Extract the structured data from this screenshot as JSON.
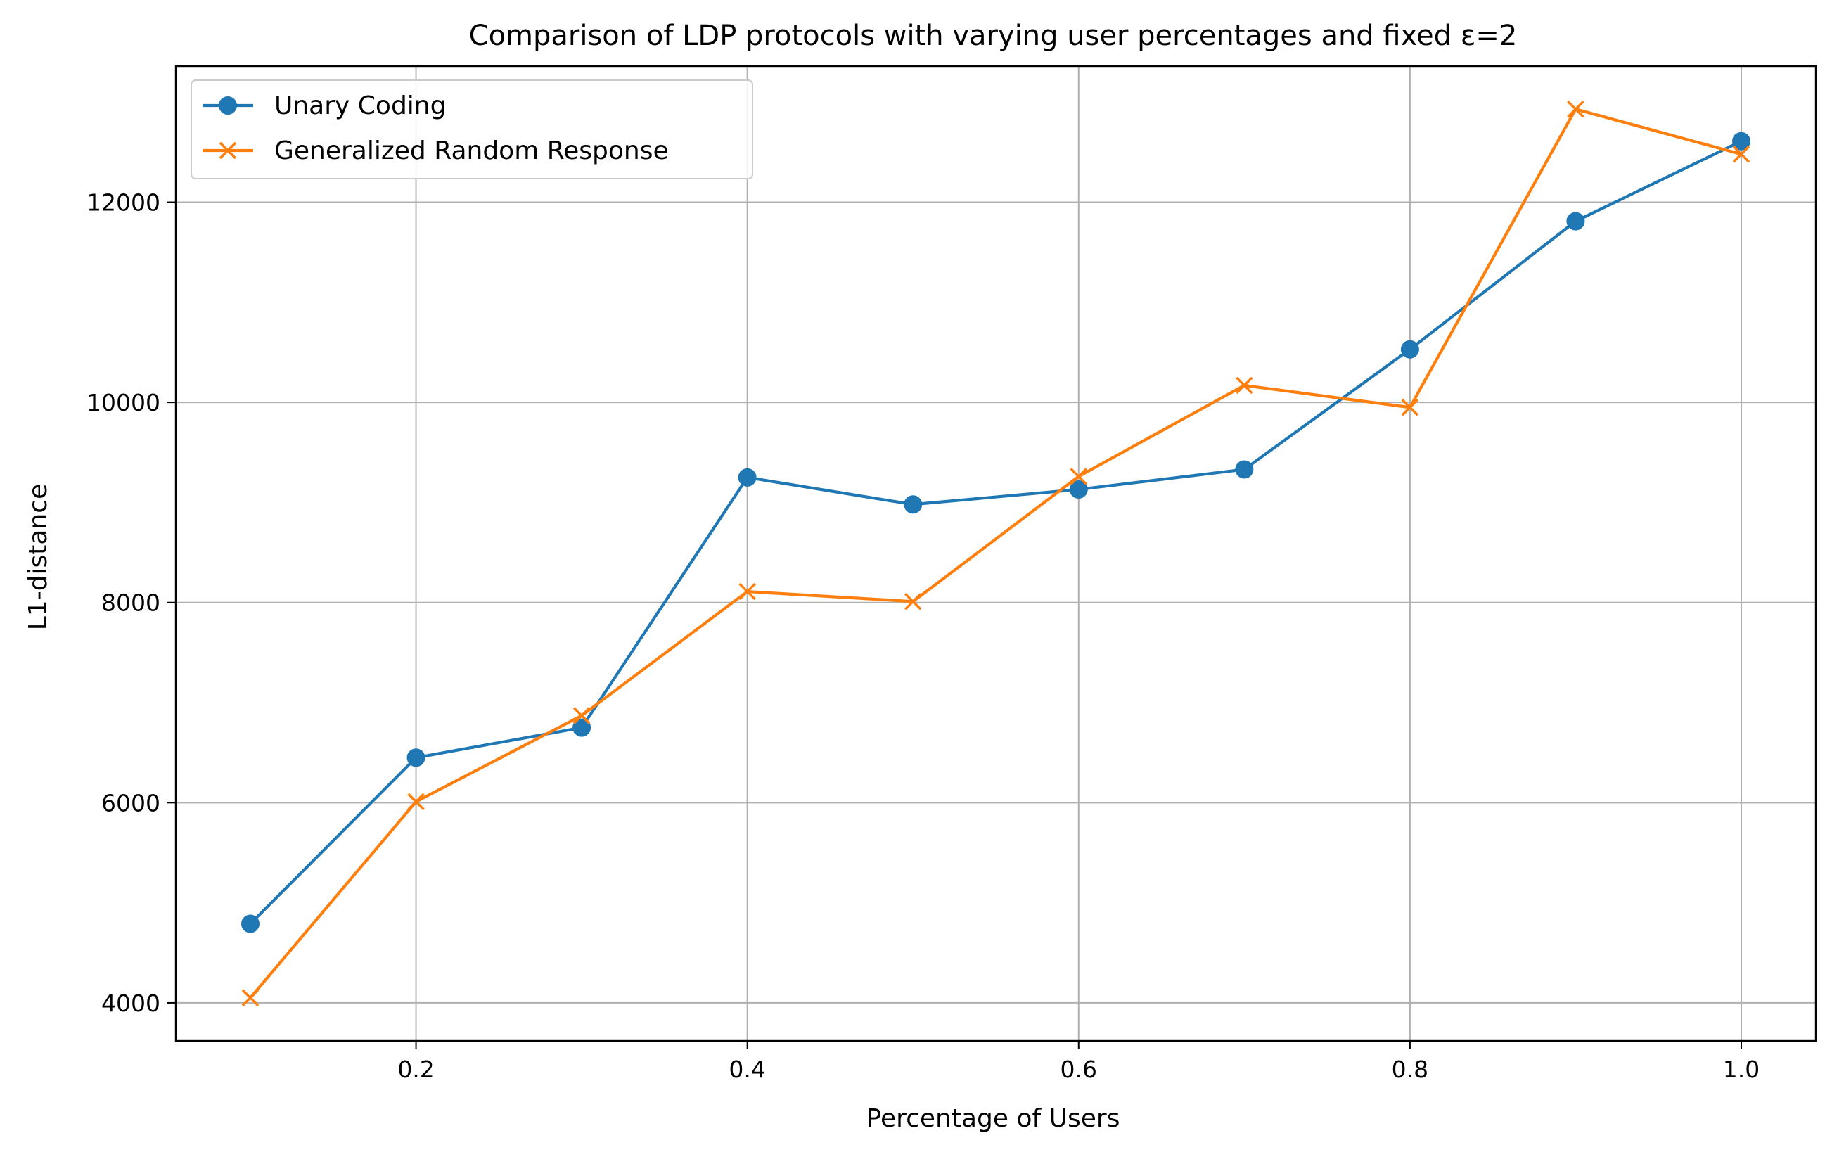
{
  "chart_data": {
    "type": "line",
    "title": "Comparison of LDP protocols with varying user percentages and fixed ε=2",
    "xlabel": "Percentage of Users",
    "ylabel": "L1-distance",
    "xlim": [
      0.055,
      1.045
    ],
    "ylim": [
      3620,
      13360
    ],
    "xticks": [
      0.2,
      0.4,
      0.6,
      0.8,
      1.0
    ],
    "xtick_labels": [
      "0.2",
      "0.4",
      "0.6",
      "0.8",
      "1.0"
    ],
    "yticks": [
      4000,
      6000,
      8000,
      10000,
      12000
    ],
    "ytick_labels": [
      "4000",
      "6000",
      "8000",
      "10000",
      "12000"
    ],
    "grid": true,
    "legend_position": "top-left",
    "x": [
      0.1,
      0.2,
      0.3,
      0.4,
      0.5,
      0.6,
      0.7,
      0.8,
      0.9,
      1.0
    ],
    "series": [
      {
        "name": "Unary Coding",
        "color": "#1f77b4",
        "marker": "circle",
        "values": [
          4790,
          6450,
          6750,
          9250,
          8980,
          9130,
          9330,
          10530,
          11810,
          12610
        ]
      },
      {
        "name": "Generalized Random Response",
        "color": "#ff7f0e",
        "marker": "x",
        "values": [
          4050,
          6010,
          6870,
          8110,
          8010,
          9260,
          10170,
          9950,
          12930,
          12480
        ]
      }
    ]
  }
}
